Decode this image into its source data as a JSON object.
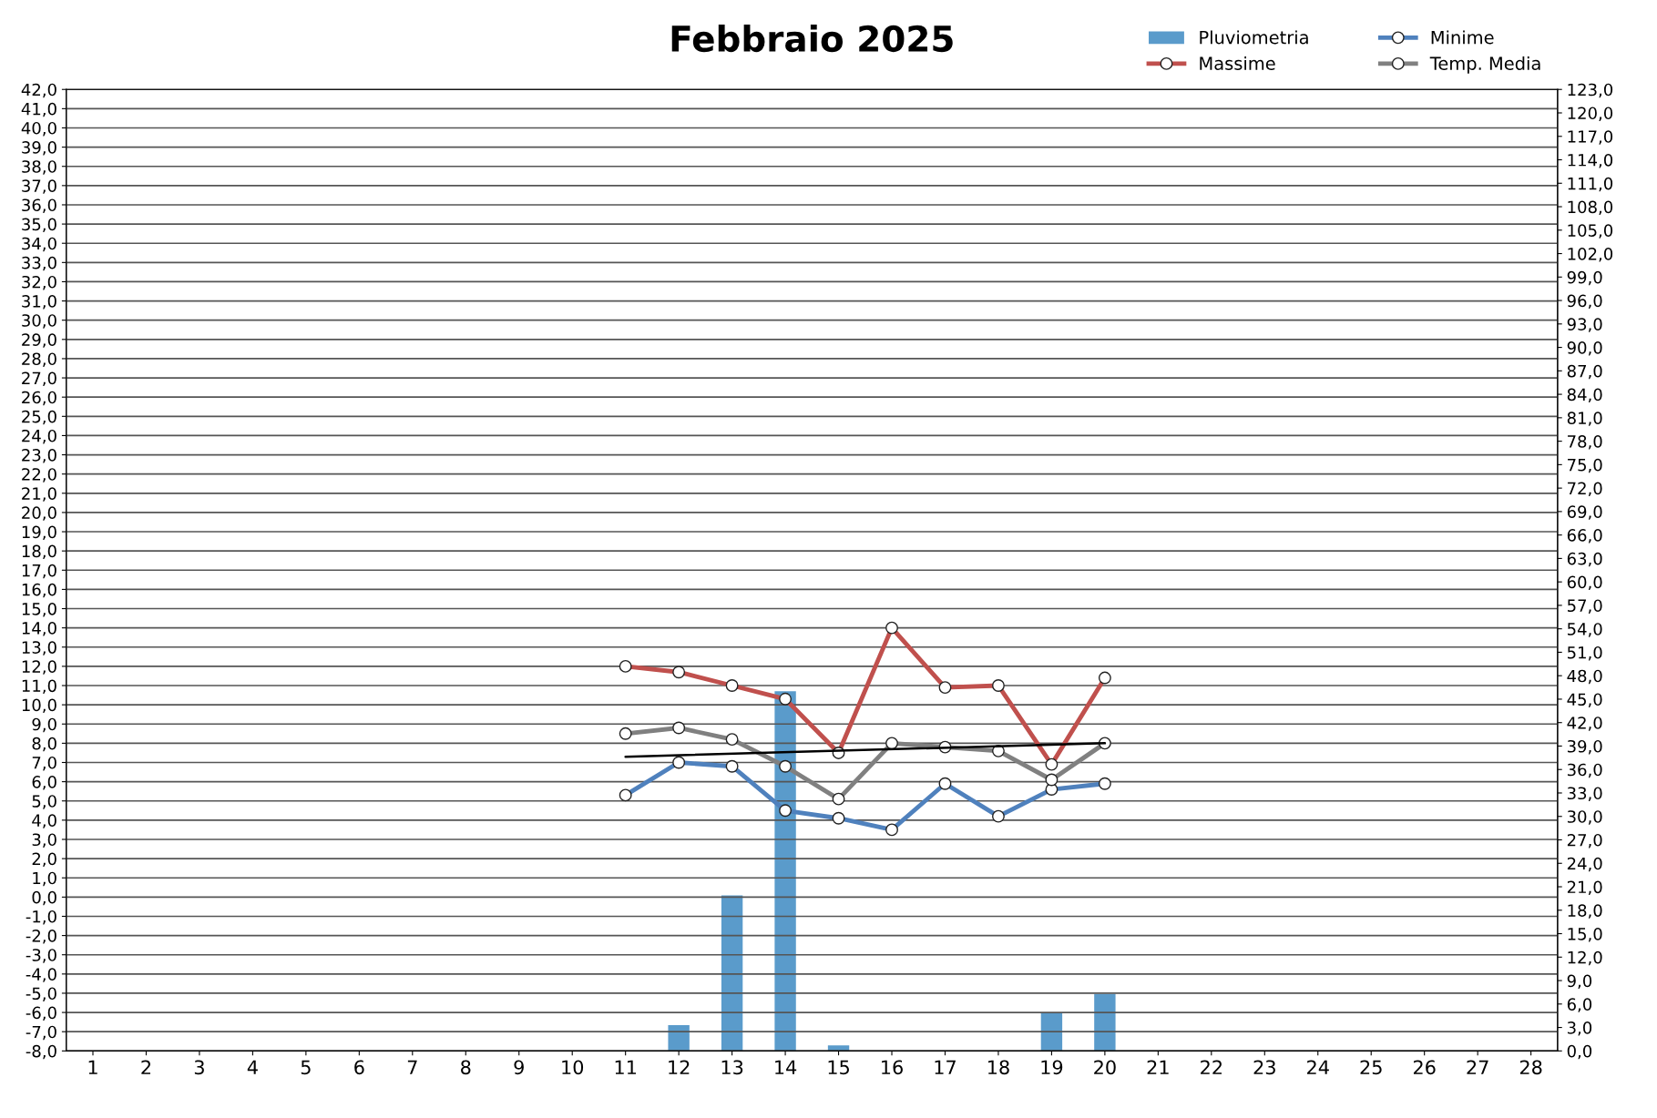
{
  "chart_data": {
    "type": "line",
    "title": "Febbraio 2025",
    "categories": [
      "1",
      "2",
      "3",
      "4",
      "5",
      "6",
      "7",
      "8",
      "9",
      "10",
      "11",
      "12",
      "13",
      "14",
      "15",
      "16",
      "17",
      "18",
      "19",
      "20",
      "21",
      "22",
      "23",
      "24",
      "25",
      "26",
      "27",
      "28"
    ],
    "series": [
      {
        "name": "Pluviometria",
        "type": "bar",
        "axis": "y2",
        "color": "#5a9bcb",
        "values": [
          null,
          null,
          null,
          null,
          null,
          null,
          null,
          null,
          null,
          null,
          null,
          3.3,
          19.9,
          46.0,
          0.7,
          null,
          null,
          null,
          4.9,
          7.3,
          null,
          null,
          null,
          null,
          null,
          null,
          null,
          null
        ]
      },
      {
        "name": "Massime",
        "color": "#c0504d",
        "marker": "circle",
        "values": [
          null,
          null,
          null,
          null,
          null,
          null,
          null,
          null,
          null,
          null,
          12.0,
          11.7,
          11.0,
          10.3,
          7.5,
          14.0,
          10.9,
          11.0,
          6.9,
          11.4,
          null,
          null,
          null,
          null,
          null,
          null,
          null,
          null
        ]
      },
      {
        "name": "Minime",
        "color": "#4f81bd",
        "marker": "circle",
        "values": [
          null,
          null,
          null,
          null,
          null,
          null,
          null,
          null,
          null,
          null,
          5.3,
          7.0,
          6.8,
          4.5,
          4.1,
          3.5,
          5.9,
          4.2,
          5.6,
          5.9,
          null,
          null,
          null,
          null,
          null,
          null,
          null,
          null
        ]
      },
      {
        "name": "Temp. Media",
        "color": "#808080",
        "marker": "circle",
        "values": [
          null,
          null,
          null,
          null,
          null,
          null,
          null,
          null,
          null,
          null,
          8.5,
          8.8,
          8.2,
          6.8,
          5.1,
          8.0,
          7.8,
          7.6,
          6.1,
          8.0,
          null,
          null,
          null,
          null,
          null,
          null,
          null,
          null
        ]
      },
      {
        "color": "#000000",
        "marker": "none",
        "x": [
          "11",
          "20"
        ],
        "values": [
          7.3,
          8.0
        ]
      }
    ],
    "ylim": [
      -8,
      42
    ],
    "yticks": [
      {
        "value": -8,
        "label": "-8,0"
      },
      {
        "value": -7,
        "label": "-7,0"
      },
      {
        "value": -6,
        "label": "-6,0"
      },
      {
        "value": -5,
        "label": "-5,0"
      },
      {
        "value": -4,
        "label": "-4,0"
      },
      {
        "value": -3,
        "label": "-3,0"
      },
      {
        "value": -2,
        "label": "-2,0"
      },
      {
        "value": -1,
        "label": "-1,0"
      },
      {
        "value": 0,
        "label": "0,0"
      },
      {
        "value": 1,
        "label": "1,0"
      },
      {
        "value": 2,
        "label": "2,0"
      },
      {
        "value": 3,
        "label": "3,0"
      },
      {
        "value": 4,
        "label": "4,0"
      },
      {
        "value": 5,
        "label": "5,0"
      },
      {
        "value": 6,
        "label": "6,0"
      },
      {
        "value": 7,
        "label": "7,0"
      },
      {
        "value": 8,
        "label": "8,0"
      },
      {
        "value": 9,
        "label": "9,0"
      },
      {
        "value": 10,
        "label": "10,0"
      },
      {
        "value": 11,
        "label": "11,0"
      },
      {
        "value": 12,
        "label": "12,0"
      },
      {
        "value": 13,
        "label": "13,0"
      },
      {
        "value": 14,
        "label": "14,0"
      },
      {
        "value": 15,
        "label": "15,0"
      },
      {
        "value": 16,
        "label": "16,0"
      },
      {
        "value": 17,
        "label": "17,0"
      },
      {
        "value": 18,
        "label": "18,0"
      },
      {
        "value": 19,
        "label": "19,0"
      },
      {
        "value": 20,
        "label": "20,0"
      },
      {
        "value": 21,
        "label": "21,0"
      },
      {
        "value": 22,
        "label": "22,0"
      },
      {
        "value": 23,
        "label": "23,0"
      },
      {
        "value": 24,
        "label": "24,0"
      },
      {
        "value": 25,
        "label": "25,0"
      },
      {
        "value": 26,
        "label": "26,0"
      },
      {
        "value": 27,
        "label": "27,0"
      },
      {
        "value": 28,
        "label": "28,0"
      },
      {
        "value": 29,
        "label": "29,0"
      },
      {
        "value": 30,
        "label": "30,0"
      },
      {
        "value": 31,
        "label": "31,0"
      },
      {
        "value": 32,
        "label": "32,0"
      },
      {
        "value": 33,
        "label": "33,0"
      },
      {
        "value": 34,
        "label": "34,0"
      },
      {
        "value": 35,
        "label": "35,0"
      },
      {
        "value": 36,
        "label": "36,0"
      },
      {
        "value": 37,
        "label": "37,0"
      },
      {
        "value": 38,
        "label": "38,0"
      },
      {
        "value": 39,
        "label": "39,0"
      },
      {
        "value": 40,
        "label": "40,0"
      },
      {
        "value": 41,
        "label": "41,0"
      },
      {
        "value": 42,
        "label": "42,0"
      }
    ],
    "y2lim": [
      0,
      123
    ],
    "y2ticks": [
      {
        "value": 0,
        "label": "0,0"
      },
      {
        "value": 3,
        "label": "3,0"
      },
      {
        "value": 6,
        "label": "6,0"
      },
      {
        "value": 9,
        "label": "9,0"
      },
      {
        "value": 12,
        "label": "12,0"
      },
      {
        "value": 15,
        "label": "15,0"
      },
      {
        "value": 18,
        "label": "18,0"
      },
      {
        "value": 21,
        "label": "21,0"
      },
      {
        "value": 24,
        "label": "24,0"
      },
      {
        "value": 27,
        "label": "27,0"
      },
      {
        "value": 30,
        "label": "30,0"
      },
      {
        "value": 33,
        "label": "33,0"
      },
      {
        "value": 36,
        "label": "36,0"
      },
      {
        "value": 39,
        "label": "39,0"
      },
      {
        "value": 42,
        "label": "42,0"
      },
      {
        "value": 45,
        "label": "45,0"
      },
      {
        "value": 48,
        "label": "48,0"
      },
      {
        "value": 51,
        "label": "51,0"
      },
      {
        "value": 54,
        "label": "54,0"
      },
      {
        "value": 57,
        "label": "57,0"
      },
      {
        "value": 60,
        "label": "60,0"
      },
      {
        "value": 63,
        "label": "63,0"
      },
      {
        "value": 66,
        "label": "66,0"
      },
      {
        "value": 69,
        "label": "69,0"
      },
      {
        "value": 72,
        "label": "72,0"
      },
      {
        "value": 75,
        "label": "75,0"
      },
      {
        "value": 78,
        "label": "78,0"
      },
      {
        "value": 81,
        "label": "81,0"
      },
      {
        "value": 84,
        "label": "84,0"
      },
      {
        "value": 87,
        "label": "87,0"
      },
      {
        "value": 90,
        "label": "90,0"
      },
      {
        "value": 93,
        "label": "93,0"
      },
      {
        "value": 96,
        "label": "96,0"
      },
      {
        "value": 99,
        "label": "99,0"
      },
      {
        "value": 102,
        "label": "102,0"
      },
      {
        "value": 105,
        "label": "105,0"
      },
      {
        "value": 108,
        "label": "108,0"
      },
      {
        "value": 111,
        "label": "111,0"
      },
      {
        "value": 114,
        "label": "114,0"
      },
      {
        "value": 117,
        "label": "117,0"
      },
      {
        "value": 120,
        "label": "120,0"
      },
      {
        "value": 123,
        "label": "123,0"
      }
    ],
    "grid": "y",
    "legend": "top right",
    "line_style": "solid"
  }
}
